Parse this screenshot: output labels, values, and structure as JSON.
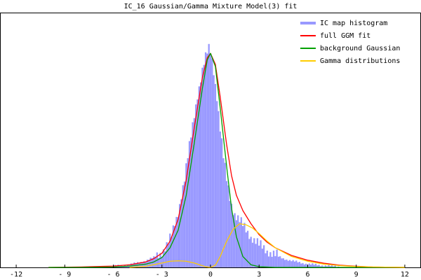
{
  "chart_data": {
    "type": "histogram-with-fits",
    "title": "IC_16 Gaussian/Gamma Mixture Model(3) fit",
    "xlabel": "",
    "ylabel": "",
    "xlim": [
      -13,
      13
    ],
    "ylim": [
      0,
      1
    ],
    "x_ticks": [
      "-12",
      "- 9",
      "- 6",
      "- 3",
      "0",
      "3",
      "6",
      "9",
      "12"
    ],
    "x_tick_values": [
      -12,
      -9,
      -6,
      -3,
      0,
      3,
      6,
      9,
      12
    ],
    "grid": false,
    "legend_position": "top-right",
    "legend": [
      {
        "label": "IC map histogram",
        "color": "#9999ff"
      },
      {
        "label": "full GGM fit",
        "color": "#ff0000"
      },
      {
        "label": "background Gaussian",
        "color": "#00a000"
      },
      {
        "label": "Gamma distributions",
        "color": "#ffcc00"
      }
    ],
    "histogram": {
      "bin_width": 0.1,
      "x": [
        -6.0,
        -5.5,
        -5.0,
        -4.5,
        -4.0,
        -3.5,
        -3.0,
        -2.7,
        -2.4,
        -2.2,
        -2.0,
        -1.8,
        -1.6,
        -1.4,
        -1.2,
        -1.0,
        -0.8,
        -0.6,
        -0.4,
        -0.2,
        -0.1,
        0.0,
        0.1,
        0.2,
        0.4,
        0.6,
        0.8,
        1.0,
        1.2,
        1.4,
        1.6,
        1.8,
        2.0,
        2.2,
        2.5,
        3.0,
        3.5,
        4.0,
        4.5,
        5.0,
        5.5,
        6.0,
        7.0,
        8.0
      ],
      "values": [
        0.005,
        0.008,
        0.012,
        0.02,
        0.03,
        0.045,
        0.07,
        0.095,
        0.14,
        0.2,
        0.25,
        0.33,
        0.4,
        0.5,
        0.6,
        0.7,
        0.79,
        0.86,
        0.93,
        0.98,
        1.0,
        0.99,
        0.95,
        0.9,
        0.78,
        0.63,
        0.5,
        0.4,
        0.32,
        0.26,
        0.23,
        0.21,
        0.19,
        0.17,
        0.14,
        0.1,
        0.075,
        0.055,
        0.04,
        0.03,
        0.022,
        0.015,
        0.008,
        0.003
      ]
    },
    "series": [
      {
        "name": "full GGM fit",
        "color": "#ff0000",
        "x": [
          -10,
          -8,
          -6,
          -5,
          -4,
          -3.5,
          -3,
          -2.5,
          -2,
          -1.5,
          -1,
          -0.5,
          -0.2,
          0,
          0.3,
          0.6,
          1,
          1.3,
          1.6,
          2,
          2.5,
          3,
          3.5,
          4,
          5,
          6,
          7,
          8,
          9,
          10,
          12
        ],
        "y": [
          0.0,
          0.002,
          0.006,
          0.012,
          0.025,
          0.04,
          0.065,
          0.12,
          0.22,
          0.4,
          0.64,
          0.87,
          0.96,
          0.98,
          0.93,
          0.78,
          0.56,
          0.42,
          0.33,
          0.26,
          0.2,
          0.15,
          0.115,
          0.09,
          0.055,
          0.033,
          0.019,
          0.01,
          0.005,
          0.002,
          0.0
        ]
      },
      {
        "name": "background Gaussian",
        "color": "#00a000",
        "x": [
          -10,
          -8,
          -6,
          -5,
          -4,
          -3.5,
          -3,
          -2.5,
          -2,
          -1.5,
          -1,
          -0.5,
          -0.2,
          0,
          0.3,
          0.6,
          1,
          1.3,
          1.6,
          2,
          2.5,
          3,
          4,
          6,
          8,
          12
        ],
        "y": [
          0.0,
          0.0,
          0.002,
          0.006,
          0.015,
          0.025,
          0.045,
          0.09,
          0.17,
          0.33,
          0.57,
          0.82,
          0.95,
          0.98,
          0.92,
          0.73,
          0.46,
          0.27,
          0.14,
          0.05,
          0.012,
          0.003,
          0.0,
          0.0,
          0.0,
          0.0
        ]
      },
      {
        "name": "Gamma distributions",
        "color": "#ffcc00",
        "x": [
          -5,
          -4,
          -3,
          -2.5,
          -2,
          -1.5,
          -1,
          -0.6,
          -0.3,
          0
        ],
        "y": [
          0.0,
          0.005,
          0.02,
          0.028,
          0.03,
          0.028,
          0.02,
          0.01,
          0.003,
          0.0
        ]
      },
      {
        "name": "Gamma distributions",
        "color": "#ffcc00",
        "x": [
          0,
          0.3,
          0.6,
          1,
          1.4,
          1.8,
          2.2,
          2.6,
          3,
          3.5,
          4,
          5,
          6,
          7,
          8,
          9,
          10,
          12
        ],
        "y": [
          0.0,
          0.01,
          0.05,
          0.12,
          0.175,
          0.2,
          0.195,
          0.18,
          0.155,
          0.12,
          0.09,
          0.05,
          0.028,
          0.015,
          0.008,
          0.004,
          0.002,
          0.0
        ]
      }
    ]
  }
}
